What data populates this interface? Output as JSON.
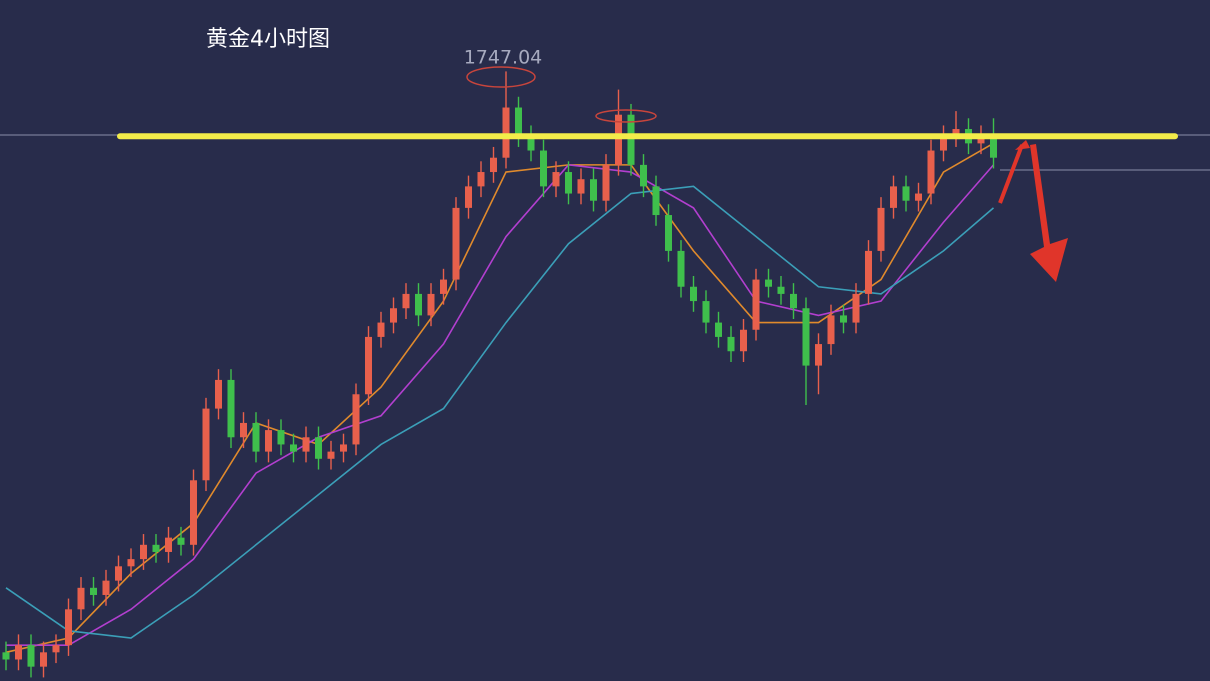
{
  "chart_data": {
    "type": "candlestick",
    "title": "黄金4小时图",
    "ylim": [
      1662,
      1757
    ],
    "up_color": "#e8604c",
    "down_color": "#3fbf4c",
    "open": [
      1666,
      1665,
      1667,
      1664,
      1666,
      1667,
      1672,
      1675,
      1674,
      1676,
      1678,
      1679,
      1681,
      1680,
      1682,
      1681,
      1690,
      1700,
      1704,
      1696,
      1698,
      1694,
      1697,
      1695,
      1694,
      1696,
      1693,
      1694,
      1695,
      1702,
      1710,
      1712,
      1714,
      1716,
      1713,
      1716,
      1718,
      1728,
      1731,
      1733,
      1735,
      1742,
      1738,
      1736,
      1731,
      1733,
      1730,
      1732,
      1729,
      1734,
      1741,
      1734,
      1731,
      1727,
      1722,
      1717,
      1715,
      1712,
      1710,
      1708,
      1711,
      1718,
      1717,
      1716,
      1714,
      1706,
      1709,
      1713,
      1712,
      1716,
      1722,
      1728,
      1731,
      1729,
      1730,
      1736,
      1738,
      1739,
      1737,
      1738
    ],
    "high": [
      1667.5,
      1668.5,
      1668.5,
      1667.5,
      1668.5,
      1673.5,
      1676.5,
      1676.5,
      1677.5,
      1679.5,
      1680.5,
      1682.5,
      1682.5,
      1683.5,
      1683.5,
      1691.5,
      1701.5,
      1705.5,
      1705.5,
      1699.5,
      1699.5,
      1698.5,
      1698.5,
      1696.5,
      1697.5,
      1697.5,
      1695.5,
      1696.5,
      1703.5,
      1711.5,
      1713.5,
      1715.5,
      1717.5,
      1717.5,
      1717.5,
      1719.5,
      1729.5,
      1732.5,
      1734.5,
      1736.5,
      1747.04,
      1743.5,
      1739.5,
      1737.5,
      1734.5,
      1734.5,
      1733.5,
      1733.5,
      1735.5,
      1744.5,
      1742.5,
      1735.5,
      1732.5,
      1728.5,
      1723.5,
      1718.5,
      1716.5,
      1713.5,
      1711.5,
      1712.5,
      1719.5,
      1719.5,
      1718.5,
      1717.5,
      1715.5,
      1710.5,
      1714.5,
      1714.5,
      1717.5,
      1723.5,
      1729.5,
      1732.5,
      1732.5,
      1731.5,
      1737.5,
      1739.5,
      1741.5,
      1740.5,
      1739.5,
      1740.5
    ],
    "low": [
      1663.5,
      1663.5,
      1662.5,
      1662.5,
      1664.5,
      1665.5,
      1670.5,
      1672.5,
      1672.5,
      1674.5,
      1676.5,
      1677.5,
      1678.5,
      1678.5,
      1679.5,
      1679.5,
      1688.5,
      1698.5,
      1694.5,
      1694.5,
      1692.5,
      1692.5,
      1693.5,
      1692.5,
      1692.5,
      1691.5,
      1691.5,
      1692.5,
      1693.5,
      1700.5,
      1708.5,
      1710.5,
      1712.5,
      1711.5,
      1711.5,
      1714.5,
      1716.5,
      1726.5,
      1729.5,
      1731.5,
      1733.5,
      1736.5,
      1734.5,
      1729.5,
      1729.5,
      1728.5,
      1728.5,
      1727.5,
      1727.5,
      1732.5,
      1732.5,
      1729.5,
      1725.5,
      1720.5,
      1715.5,
      1713.5,
      1710.5,
      1708.5,
      1706.5,
      1706.5,
      1709.5,
      1715.5,
      1714.5,
      1712.5,
      1700.5,
      1702,
      1707.5,
      1710.5,
      1710.5,
      1714.5,
      1720.5,
      1726.5,
      1727.5,
      1727.5,
      1728.5,
      1734.5,
      1736.5,
      1735.5,
      1735.5,
      1733.5
    ],
    "close": [
      1665,
      1667,
      1664,
      1666,
      1667,
      1672,
      1675,
      1674,
      1676,
      1678,
      1679,
      1681,
      1680,
      1682,
      1681,
      1690,
      1700,
      1704,
      1696,
      1698,
      1694,
      1697,
      1695,
      1694,
      1696,
      1693,
      1694,
      1695,
      1702,
      1710,
      1712,
      1714,
      1716,
      1713,
      1716,
      1718,
      1728,
      1731,
      1733,
      1735,
      1742,
      1738,
      1736,
      1731,
      1733,
      1730,
      1732,
      1729,
      1734,
      1741,
      1734,
      1731,
      1727,
      1722,
      1717,
      1715,
      1712,
      1710,
      1708,
      1711,
      1718,
      1717,
      1716,
      1714,
      1706,
      1709,
      1713,
      1712,
      1716,
      1722,
      1728,
      1731,
      1729,
      1730,
      1736,
      1738,
      1739,
      1737,
      1738,
      1735
    ],
    "series": [
      {
        "color": "#e08a2c",
        "x": [
          0,
          5,
          10,
          15,
          20,
          25,
          30,
          35,
          40,
          45,
          50,
          55,
          60,
          65,
          70,
          75,
          79
        ],
        "values": [
          1666,
          1668,
          1677,
          1684,
          1698,
          1695,
          1703,
          1715,
          1733,
          1734,
          1734,
          1722,
          1712,
          1712,
          1718,
          1733,
          1737
        ]
      },
      {
        "color": "#b23fcf",
        "x": [
          0,
          5,
          10,
          15,
          20,
          25,
          30,
          35,
          40,
          45,
          50,
          55,
          60,
          65,
          70,
          75,
          79
        ],
        "values": [
          1667,
          1667,
          1672,
          1679,
          1691,
          1696,
          1699,
          1709,
          1724,
          1734,
          1733,
          1728,
          1715,
          1713,
          1715,
          1726,
          1734
        ]
      },
      {
        "color": "#3b9fb8",
        "x": [
          0,
          5,
          10,
          15,
          20,
          25,
          30,
          35,
          40,
          45,
          50,
          55,
          60,
          65,
          70,
          75,
          79
        ],
        "values": [
          1675,
          1669,
          1668,
          1674,
          1681,
          1688,
          1695,
          1700,
          1712,
          1723,
          1730,
          1731,
          1724,
          1717,
          1716,
          1722,
          1728
        ]
      }
    ],
    "resistance": 1738,
    "resistance_color": "#f3ec4a"
  }
}
